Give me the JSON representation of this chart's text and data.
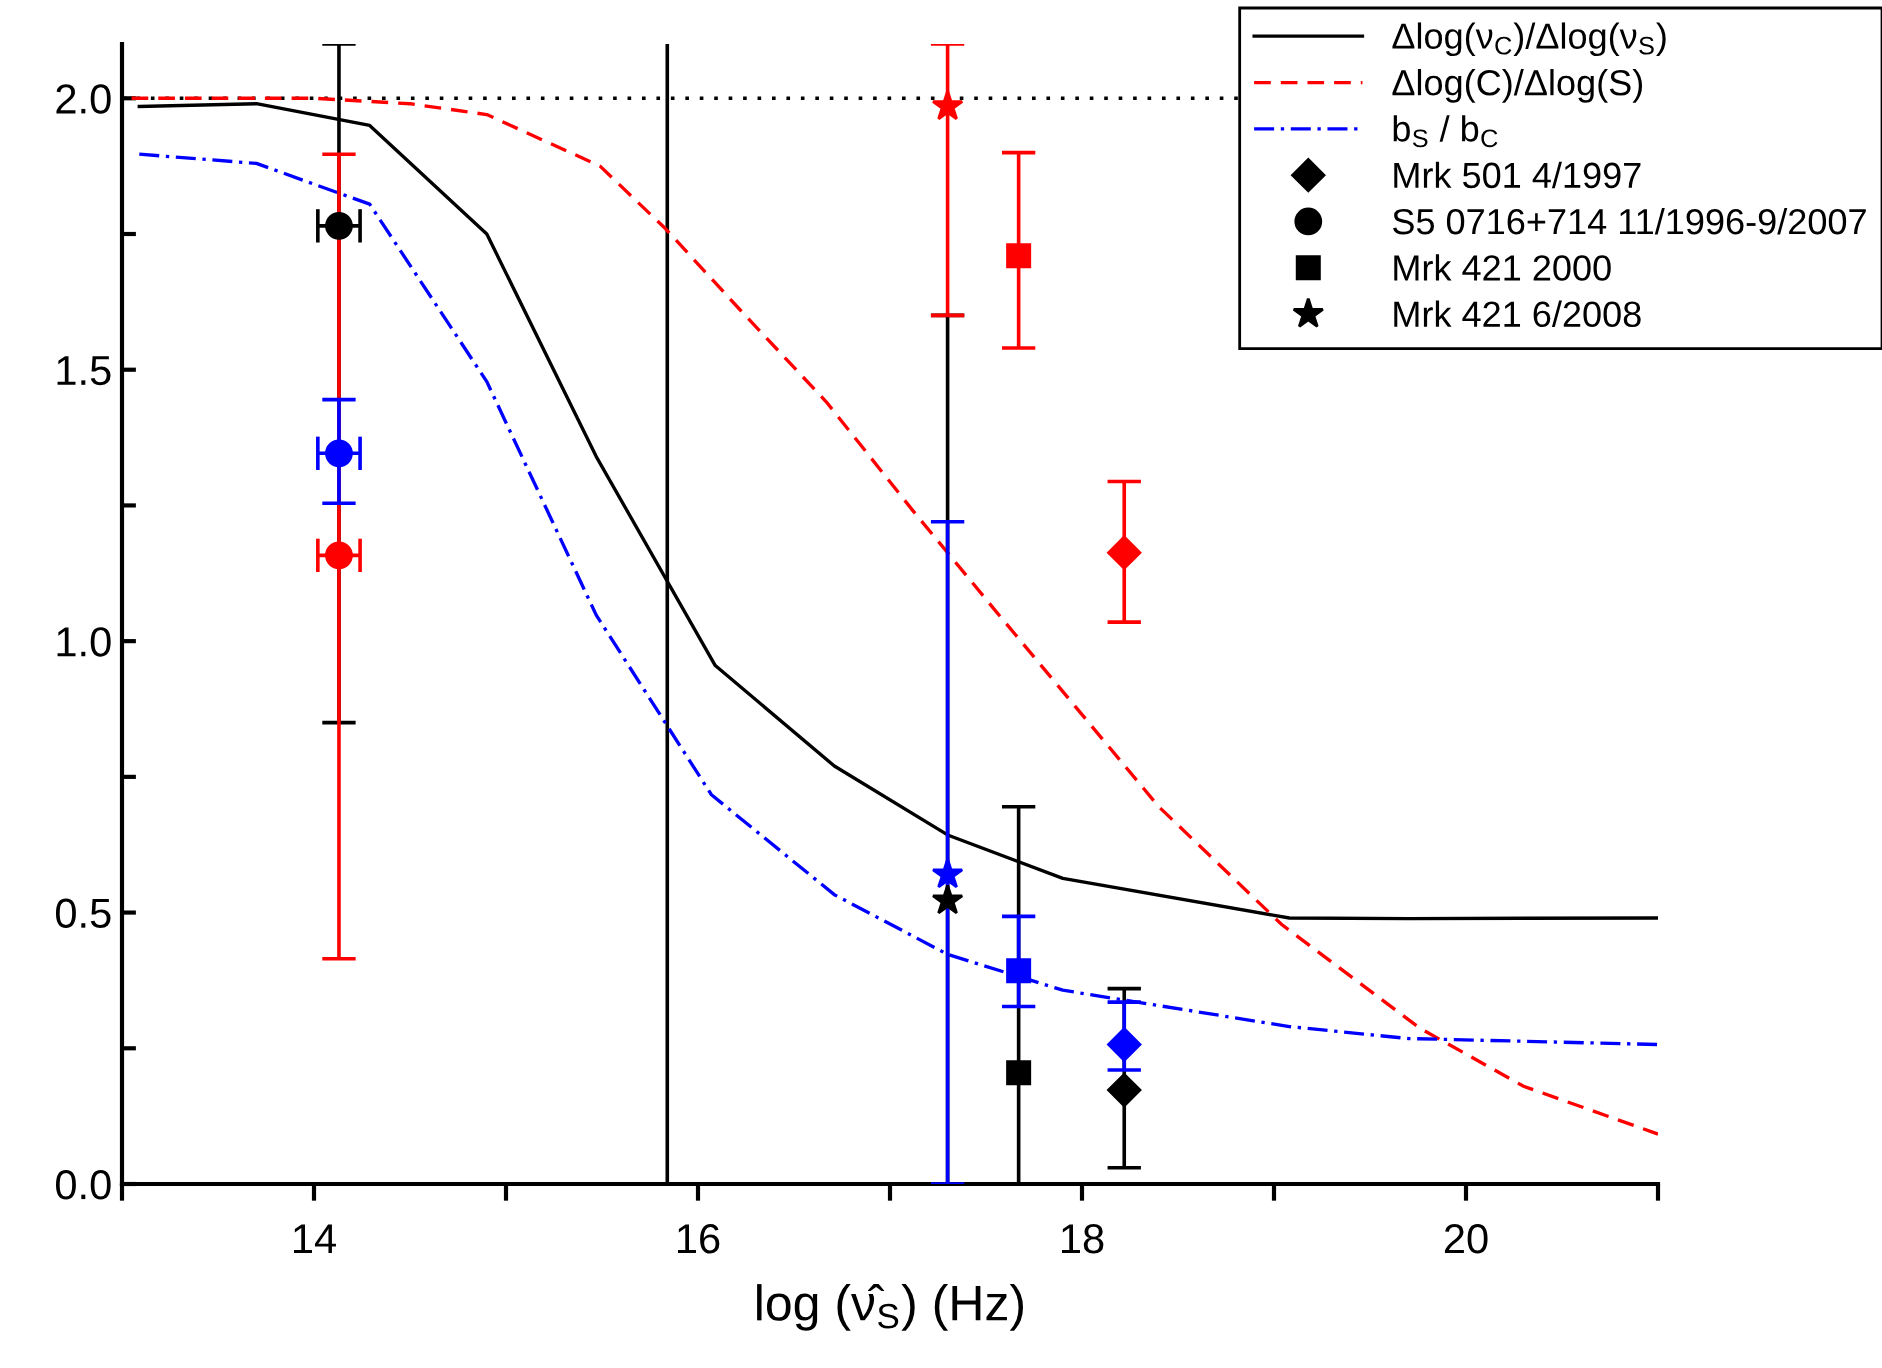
{
  "chart_data": {
    "type": "line",
    "xlabel": "log (ν̂$_{S}$) (Hz)",
    "xlim": [
      13,
      21
    ],
    "xticks": [
      {
        "value": 13,
        "label": null
      },
      14,
      {
        "value": 15,
        "label": null
      },
      16,
      {
        "value": 17,
        "label": null
      },
      18,
      {
        "value": 19,
        "label": null
      },
      20,
      {
        "value": 21,
        "label": null
      }
    ],
    "ylim": [
      0,
      2.1
    ],
    "yticks": [
      {
        "value": 0,
        "label": "0.0"
      },
      {
        "value": 0.25,
        "label": null
      },
      {
        "value": 0.5,
        "label": "0.5"
      },
      {
        "value": 0.75,
        "label": null
      },
      {
        "value": 1.0,
        "label": "1.0"
      },
      {
        "value": 1.25,
        "label": null
      },
      {
        "value": 1.5,
        "label": "1.5"
      },
      {
        "value": 1.75,
        "label": null
      },
      {
        "value": 2.0,
        "label": "2.0"
      }
    ],
    "grid": false,
    "legend": "top right",
    "ref_lines": [
      {
        "axis": "y",
        "value": 2.0,
        "color": "#000000",
        "line_style": "dotted"
      },
      {
        "axis": "x",
        "value": 15.84,
        "color": "#000000",
        "line_style": "solid"
      }
    ],
    "series": [
      {
        "name": "Δlog(ν$_{C}$)/Δlog(ν$_{S}$)",
        "color": "#000000",
        "line_style": "solid",
        "marker": "none",
        "x": [
          13.09,
          13.7,
          14.29,
          14.9,
          15.47,
          16.09,
          16.71,
          17.3,
          17.9,
          19.08,
          19.7,
          21
        ],
        "values": [
          1.985,
          1.99,
          1.95,
          1.75,
          1.34,
          0.955,
          0.77,
          0.643,
          0.563,
          0.49,
          0.489,
          0.49
        ]
      },
      {
        "name": "Δlog(C)/Δlog(S)",
        "color": "#ff0000",
        "line_style": "dashed",
        "marker": "none",
        "x": [
          13.05,
          14,
          14.5,
          14.9,
          15.49,
          15.83,
          16.22,
          16.67,
          17.12,
          17.54,
          18.4,
          19.04,
          19.76,
          20.3,
          21
        ],
        "values": [
          2.0,
          2.0,
          1.99,
          1.97,
          1.875,
          1.76,
          1.61,
          1.44,
          1.24,
          1.06,
          0.695,
          0.478,
          0.287,
          0.18,
          0.092
        ]
      },
      {
        "name": "b$_{S}$ / b$_{C}$",
        "color": "#0000ff",
        "line_style": "dashdot",
        "marker": "none",
        "x": [
          13.09,
          13.7,
          14.29,
          14.9,
          15.47,
          16.07,
          16.71,
          17.3,
          17.9,
          19.08,
          19.7,
          21
        ],
        "values": [
          1.897,
          1.88,
          1.805,
          1.478,
          1.048,
          0.717,
          0.533,
          0.423,
          0.357,
          0.29,
          0.268,
          0.257
        ]
      },
      {
        "name": "Mrk 501 4/1997",
        "type": "scatter",
        "marker": "diamond",
        "color": "#000000",
        "x": [
          18.22
        ],
        "values": [
          0.173
        ],
        "errors": [
          [
            0.03,
            0.36
          ]
        ]
      },
      {
        "name": "S5 0716+714 11/1996-9/2007",
        "type": "scatter",
        "marker": "circle",
        "color": "#000000",
        "x": [
          14.13
        ],
        "values": [
          1.765
        ],
        "errors": [
          [
            0.85,
            2.1
          ]
        ],
        "xerrors": [
          0.11
        ]
      },
      {
        "name": "Mrk 421 2000",
        "type": "scatter",
        "marker": "square",
        "color": "#000000",
        "x": [
          17.67
        ],
        "values": [
          0.205
        ],
        "errors": [
          [
            0,
            0.695
          ]
        ]
      },
      {
        "name": "Mrk 421 6/2008",
        "type": "scatter",
        "marker": "star",
        "color": "#000000",
        "x": [
          17.3
        ],
        "values": [
          0.522
        ],
        "errors": [
          [
            0,
            1.6
          ]
        ]
      },
      {
        "type": "scatter",
        "marker": "diamond",
        "color": "#ff0000",
        "x": [
          18.22
        ],
        "values": [
          1.163
        ],
        "errors": [
          [
            1.035,
            1.294
          ]
        ]
      },
      {
        "type": "scatter",
        "marker": "circle",
        "color": "#ff0000",
        "x": [
          14.13
        ],
        "values": [
          1.158
        ],
        "errors": [
          [
            0.415,
            1.897
          ]
        ],
        "xerrors": [
          0.11
        ]
      },
      {
        "type": "scatter",
        "marker": "square",
        "color": "#ff0000",
        "x": [
          17.67
        ],
        "values": [
          1.71
        ],
        "errors": [
          [
            1.54,
            1.9
          ]
        ]
      },
      {
        "type": "scatter",
        "marker": "star",
        "color": "#ff0000",
        "x": [
          17.3
        ],
        "values": [
          1.985
        ],
        "errors": [
          [
            1.6,
            2.1
          ]
        ]
      },
      {
        "type": "scatter",
        "marker": "diamond",
        "color": "#0000ff",
        "x": [
          18.22
        ],
        "values": [
          0.257
        ],
        "errors": [
          [
            0.21,
            0.335
          ]
        ]
      },
      {
        "type": "scatter",
        "marker": "circle",
        "color": "#0000ff",
        "x": [
          14.13
        ],
        "values": [
          1.346
        ],
        "errors": [
          [
            1.254,
            1.445
          ]
        ],
        "xerrors": [
          0.11
        ]
      },
      {
        "type": "scatter",
        "marker": "square",
        "color": "#0000ff",
        "x": [
          17.67
        ],
        "values": [
          0.393
        ],
        "errors": [
          [
            0.327,
            0.493
          ]
        ]
      },
      {
        "type": "scatter",
        "marker": "star",
        "color": "#0000ff",
        "x": [
          17.3
        ],
        "values": [
          0.57
        ],
        "errors": [
          [
            0,
            1.22
          ]
        ]
      }
    ]
  }
}
